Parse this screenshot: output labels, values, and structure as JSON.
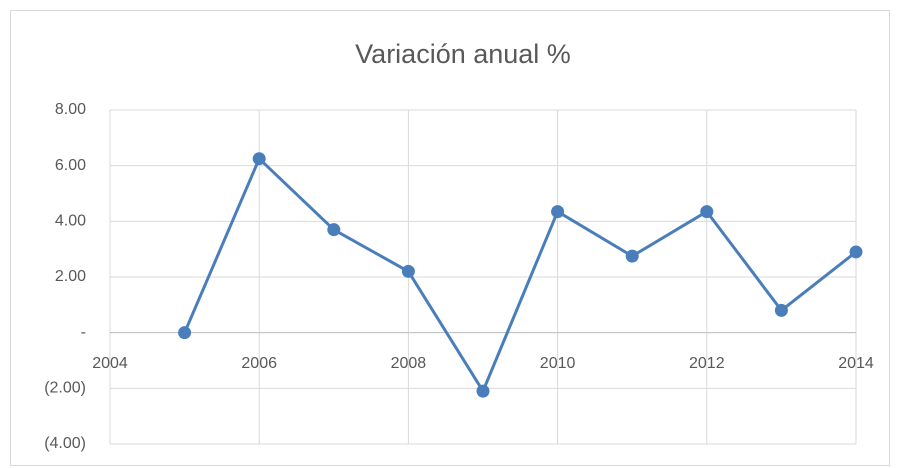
{
  "chart_data": {
    "type": "line",
    "title": "Variación anual %",
    "x": [
      2005,
      2006,
      2007,
      2008,
      2009,
      2010,
      2011,
      2012,
      2013,
      2014
    ],
    "series": [
      {
        "name": "Variación anual %",
        "color": "#4a7ebb",
        "values": [
          0,
          6.25,
          3.7,
          2.2,
          -2.1,
          4.35,
          2.75,
          4.35,
          0.8,
          2.9
        ]
      }
    ],
    "xlim": [
      2004,
      2014
    ],
    "xticks": [
      2004,
      2006,
      2008,
      2010,
      2012,
      2014
    ],
    "ylim": [
      -4,
      8
    ],
    "yticks": [
      {
        "value": 8,
        "label": "8.00"
      },
      {
        "value": 6,
        "label": "6.00"
      },
      {
        "value": 4,
        "label": "4.00"
      },
      {
        "value": 2,
        "label": "2.00"
      },
      {
        "value": 0,
        "label": "-"
      },
      {
        "value": -2,
        "label": "(2.00)"
      },
      {
        "value": -4,
        "label": "(4.00)"
      }
    ],
    "grid": true
  }
}
